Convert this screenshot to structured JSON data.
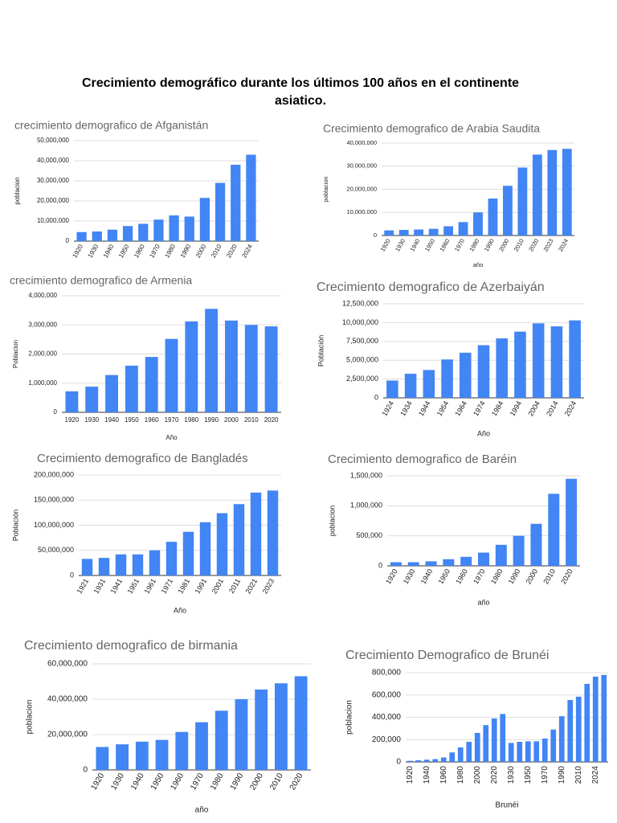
{
  "title": "Crecimiento demográfico durante los últimos 100 años en el continente asiatico.",
  "chart_data": [
    {
      "type": "bar",
      "title": "crecimiento demografico de Afganistán",
      "y_label": "poblacion",
      "color": "#4285f4",
      "grid": true,
      "categories": [
        "1920",
        "1930",
        "1940",
        "1950",
        "1960",
        "1970",
        "1980",
        "1990",
        "2000",
        "2010",
        "2020",
        "2024"
      ],
      "values": [
        4500000,
        4800000,
        5700000,
        7500000,
        8600000,
        10700000,
        12800000,
        12200000,
        21500000,
        29000000,
        38000000,
        43000000
      ],
      "ylim": [
        0,
        50000000
      ],
      "yticks": [
        0,
        {
          "value": 10000000,
          "label": "10,000,000"
        },
        {
          "value": 20000000,
          "label": "20,000,000"
        },
        {
          "value": 30000000,
          "label": "30,000,000"
        },
        {
          "value": 40000000,
          "label": "40,000,000"
        },
        {
          "value": 50000000,
          "label": "50,000,000"
        }
      ]
    },
    {
      "type": "bar",
      "title": "Crecimiento demografico de Arabia Saudita",
      "y_label": "poblacion",
      "x_label": "año",
      "color": "#4285f4",
      "grid": true,
      "categories": [
        "1920",
        "1930",
        "1940",
        "1950",
        "1960",
        "1970",
        "1980",
        "1990",
        "2000",
        "2010",
        "2020",
        "2023",
        "2024"
      ],
      "values": [
        2200000,
        2400000,
        2600000,
        2900000,
        4000000,
        5800000,
        10000000,
        16000000,
        21500000,
        29400000,
        35000000,
        37000000,
        37500000
      ],
      "ylim": [
        0,
        40000000
      ],
      "yticks": [
        0,
        {
          "value": 10000000,
          "label": "10,000,000"
        },
        {
          "value": 20000000,
          "label": "20,000,000"
        },
        {
          "value": 30000000,
          "label": "30,000,000"
        },
        {
          "value": 40000000,
          "label": "40,000,000"
        }
      ]
    },
    {
      "type": "bar",
      "title": "crecimiento demografico de Armenia",
      "y_label": "Poblacion",
      "x_label": "Año",
      "color": "#4285f4",
      "grid": true,
      "categories": [
        "1920",
        "1930",
        "1940",
        "1950",
        "1960",
        "1970",
        "1980",
        "1990",
        "2000",
        "2010",
        "2020"
      ],
      "values": [
        720000,
        880000,
        1280000,
        1600000,
        1900000,
        2520000,
        3120000,
        3550000,
        3150000,
        3000000,
        2950000
      ],
      "ylim": [
        0,
        4000000
      ],
      "yticks": [
        0,
        {
          "value": 1000000,
          "label": "1,000,000"
        },
        {
          "value": 2000000,
          "label": "2,000,000"
        },
        {
          "value": 3000000,
          "label": "3,000,000"
        },
        {
          "value": 4000000,
          "label": "4,000,000"
        }
      ]
    },
    {
      "type": "bar",
      "title": "Crecimiento demografico de Azerbaiyán",
      "y_label": "Población",
      "x_label": "Año",
      "color": "#4285f4",
      "grid": true,
      "categories": [
        "1924",
        "1934",
        "1944",
        "1954",
        "1964",
        "1974",
        "1984",
        "1994",
        "2004",
        "2014",
        "2024"
      ],
      "values": [
        2300000,
        3200000,
        3700000,
        5100000,
        6000000,
        7000000,
        7900000,
        8800000,
        9900000,
        9500000,
        10300000
      ],
      "ylim": [
        0,
        12500000
      ],
      "yticks": [
        0,
        {
          "value": 2500000,
          "label": "2,500,000"
        },
        {
          "value": 5000000,
          "label": "5,000,000"
        },
        {
          "value": 7500000,
          "label": "7,500,000"
        },
        {
          "value": 10000000,
          "label": "10,000,000"
        },
        {
          "value": 12500000,
          "label": "12,500,000"
        }
      ]
    },
    {
      "type": "bar",
      "title": "Crecimiento demografico de Bangladés",
      "y_label": "Población",
      "x_label": "Año",
      "color": "#4285f4",
      "grid": true,
      "categories": [
        "1921",
        "1931",
        "1941",
        "1951",
        "1961",
        "1971",
        "1981",
        "1991",
        "2001",
        "2011",
        "2021",
        "2023"
      ],
      "values": [
        33000000,
        35000000,
        42000000,
        42000000,
        50000000,
        67000000,
        87000000,
        106000000,
        124000000,
        142000000,
        165000000,
        169000000
      ],
      "ylim": [
        0,
        200000000
      ],
      "yticks": [
        0,
        {
          "value": 50000000,
          "label": "50,000,000"
        },
        {
          "value": 100000000,
          "label": "100,000,000"
        },
        {
          "value": 150000000,
          "label": "150,000,000"
        },
        {
          "value": 200000000,
          "label": "200,000,000"
        }
      ]
    },
    {
      "type": "bar",
      "title": "Crecimiento demografico de Baréin",
      "y_label": "poblacion",
      "x_label": "año",
      "color": "#4285f4",
      "grid": true,
      "categories": [
        "1920",
        "1930",
        "1940",
        "1950",
        "1960",
        "1970",
        "1980",
        "1990",
        "2000",
        "2010",
        "2020"
      ],
      "values": [
        60000,
        60000,
        75000,
        110000,
        150000,
        220000,
        350000,
        500000,
        700000,
        1200000,
        1450000
      ],
      "ylim": [
        0,
        1500000
      ],
      "yticks": [
        0,
        {
          "value": 500000,
          "label": "500,000"
        },
        {
          "value": 1000000,
          "label": "1,000,000"
        },
        {
          "value": 1500000,
          "label": "1,500,000"
        }
      ]
    },
    {
      "type": "bar",
      "title": "Crecimiento demografico de birmania",
      "y_label": "poblacion",
      "x_label": "año",
      "color": "#4285f4",
      "grid": true,
      "categories": [
        "1920",
        "1930",
        "1940",
        "1950",
        "1960",
        "1970",
        "1980",
        "1990",
        "2000",
        "2010",
        "2020"
      ],
      "values": [
        13000000,
        14500000,
        16000000,
        17000000,
        21500000,
        27000000,
        33500000,
        40000000,
        45500000,
        49000000,
        53000000
      ],
      "ylim": [
        0,
        60000000
      ],
      "yticks": [
        0,
        {
          "value": 20000000,
          "label": "20,000,000"
        },
        {
          "value": 40000000,
          "label": "40,000,000"
        },
        {
          "value": 60000000,
          "label": "60,000,000"
        }
      ]
    },
    {
      "type": "bar",
      "title": "Crecimiento Demografico de Brunéi",
      "y_label": "poblacion",
      "x_label": "Brunéi",
      "color": "#4285f4",
      "grid": true,
      "categories": [
        "1920",
        null,
        "1940",
        null,
        "1960",
        null,
        "1980",
        null,
        "2000",
        null,
        "2020",
        null,
        "1930",
        null,
        "1950",
        null,
        "1970",
        null,
        "1990",
        null,
        "2010",
        null,
        "2024",
        null
      ],
      "values": [
        10000,
        15000,
        20000,
        25000,
        40000,
        85000,
        130000,
        180000,
        260000,
        330000,
        390000,
        430000,
        170000,
        180000,
        185000,
        185000,
        210000,
        290000,
        410000,
        555000,
        585000,
        700000,
        765000,
        780000
      ],
      "ylim": [
        0,
        800000
      ],
      "yticks": [
        0,
        {
          "value": 200000,
          "label": "200,000"
        },
        {
          "value": 400000,
          "label": "400,000"
        },
        {
          "value": 600000,
          "label": "600,000"
        },
        {
          "value": 800000,
          "label": "800,000"
        }
      ]
    }
  ]
}
